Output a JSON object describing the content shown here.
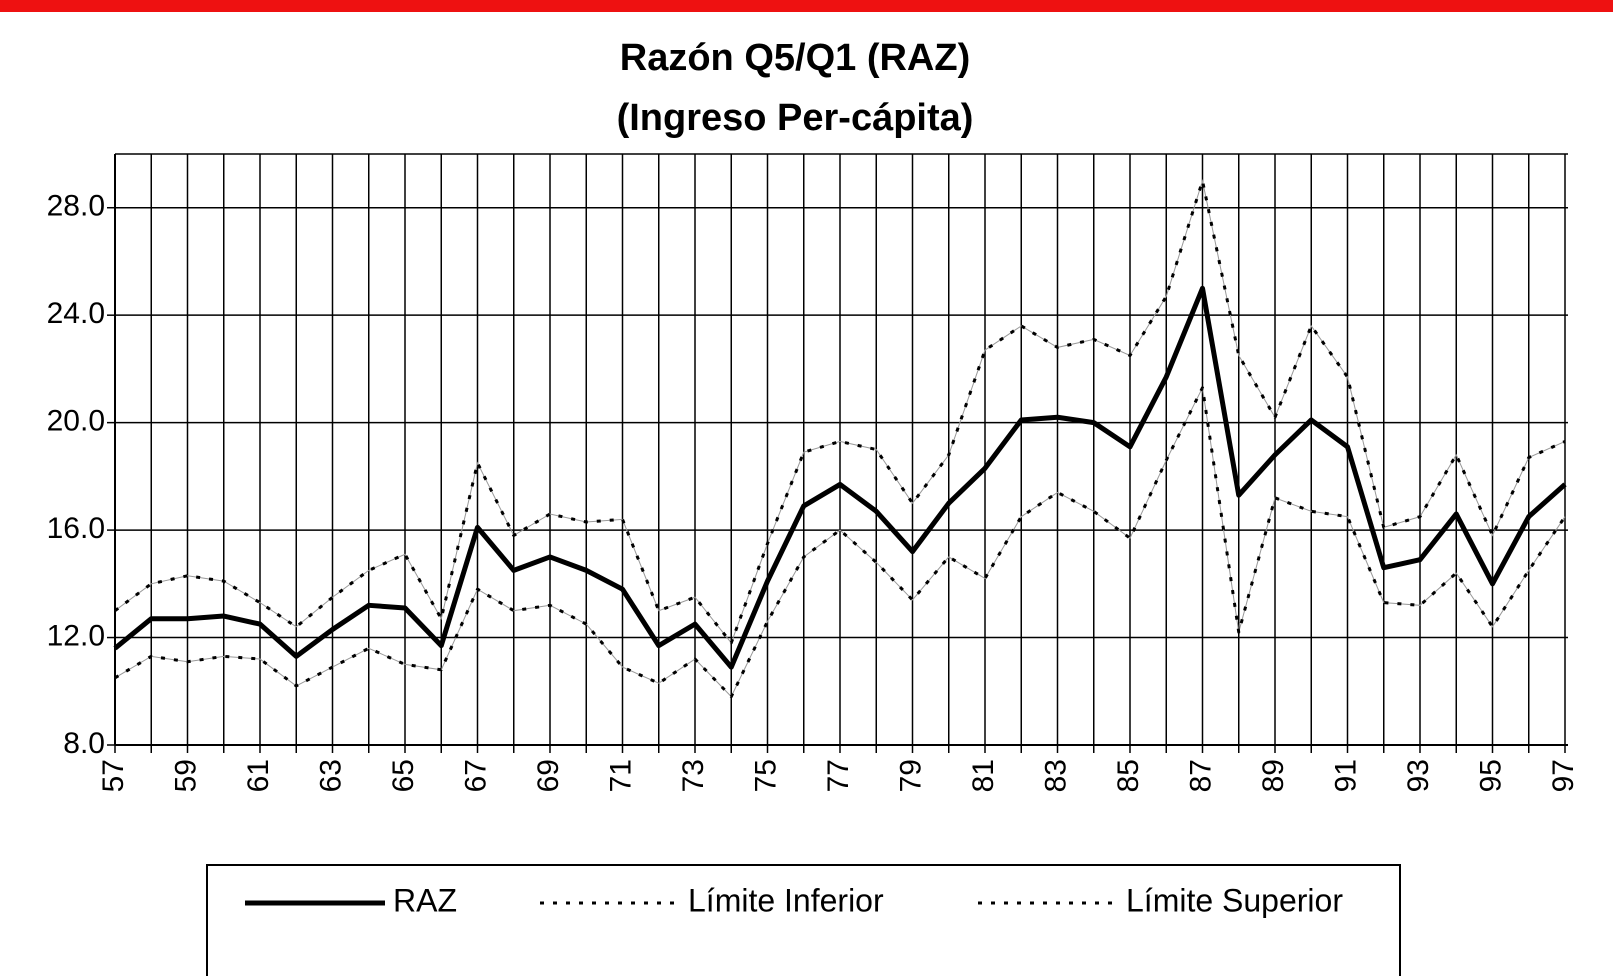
{
  "chart_data": {
    "type": "line",
    "title": "Razón Q5/Q1 (RAZ)",
    "subtitle": "(Ingreso Per-cápita)",
    "x": [
      57,
      58,
      59,
      60,
      61,
      62,
      63,
      64,
      65,
      66,
      67,
      68,
      69,
      70,
      71,
      72,
      73,
      74,
      75,
      76,
      77,
      78,
      79,
      80,
      81,
      82,
      83,
      84,
      85,
      86,
      87,
      88,
      89,
      90,
      91,
      92,
      93,
      94,
      95,
      96,
      97
    ],
    "xlim": [
      57,
      97
    ],
    "xticks": [
      57,
      59,
      61,
      63,
      65,
      67,
      69,
      71,
      73,
      75,
      77,
      79,
      81,
      83,
      85,
      87,
      89,
      91,
      93,
      95,
      97
    ],
    "ylim": [
      8,
      30
    ],
    "yticks": [
      {
        "value": 8,
        "label": "8.0"
      },
      {
        "value": 12,
        "label": "12.0"
      },
      {
        "value": 16,
        "label": "16.0"
      },
      {
        "value": 20,
        "label": "20.0"
      },
      {
        "value": 24,
        "label": "24.0"
      },
      {
        "value": 28,
        "label": "28.0"
      }
    ],
    "grid": true,
    "legend": "bottom",
    "series": [
      {
        "name": "RAZ",
        "color": "#000000",
        "line_style": "solid",
        "values": [
          11.6,
          12.7,
          12.7,
          12.8,
          12.5,
          11.3,
          12.3,
          13.2,
          13.1,
          11.7,
          16.1,
          14.5,
          15.0,
          14.5,
          13.8,
          11.7,
          12.5,
          10.9,
          14.1,
          16.9,
          17.7,
          16.7,
          15.2,
          17.0,
          18.3,
          20.1,
          20.2,
          20.0,
          19.1,
          21.7,
          25.0,
          17.3,
          18.8,
          20.1,
          19.1,
          14.6,
          14.9,
          16.6,
          14.0,
          16.5,
          17.7
        ]
      },
      {
        "name": "Límite Inferior",
        "color": "#000000",
        "line_style": "dotted",
        "values": [
          10.5,
          11.3,
          11.1,
          11.3,
          11.2,
          10.2,
          10.9,
          11.6,
          11.0,
          10.8,
          13.8,
          13.0,
          13.2,
          12.5,
          10.9,
          10.3,
          11.2,
          9.8,
          12.6,
          15.0,
          16.0,
          14.8,
          13.4,
          15.0,
          14.2,
          16.5,
          17.4,
          16.7,
          15.7,
          18.6,
          21.3,
          12.2,
          17.2,
          16.7,
          16.5,
          13.3,
          13.2,
          14.4,
          12.4,
          14.5,
          16.5
        ]
      },
      {
        "name": "Límite Superior",
        "color": "#000000",
        "line_style": "dotted",
        "values": [
          13.0,
          14.0,
          14.3,
          14.1,
          13.3,
          12.4,
          13.5,
          14.5,
          15.1,
          12.7,
          18.5,
          15.8,
          16.6,
          16.3,
          16.4,
          13.0,
          13.5,
          11.8,
          15.5,
          18.9,
          19.3,
          19.0,
          17.0,
          18.8,
          22.7,
          23.6,
          22.8,
          23.1,
          22.5,
          24.7,
          29.0,
          22.5,
          20.2,
          23.6,
          21.7,
          16.1,
          16.5,
          18.8,
          15.8,
          18.7,
          19.3
        ]
      }
    ]
  }
}
